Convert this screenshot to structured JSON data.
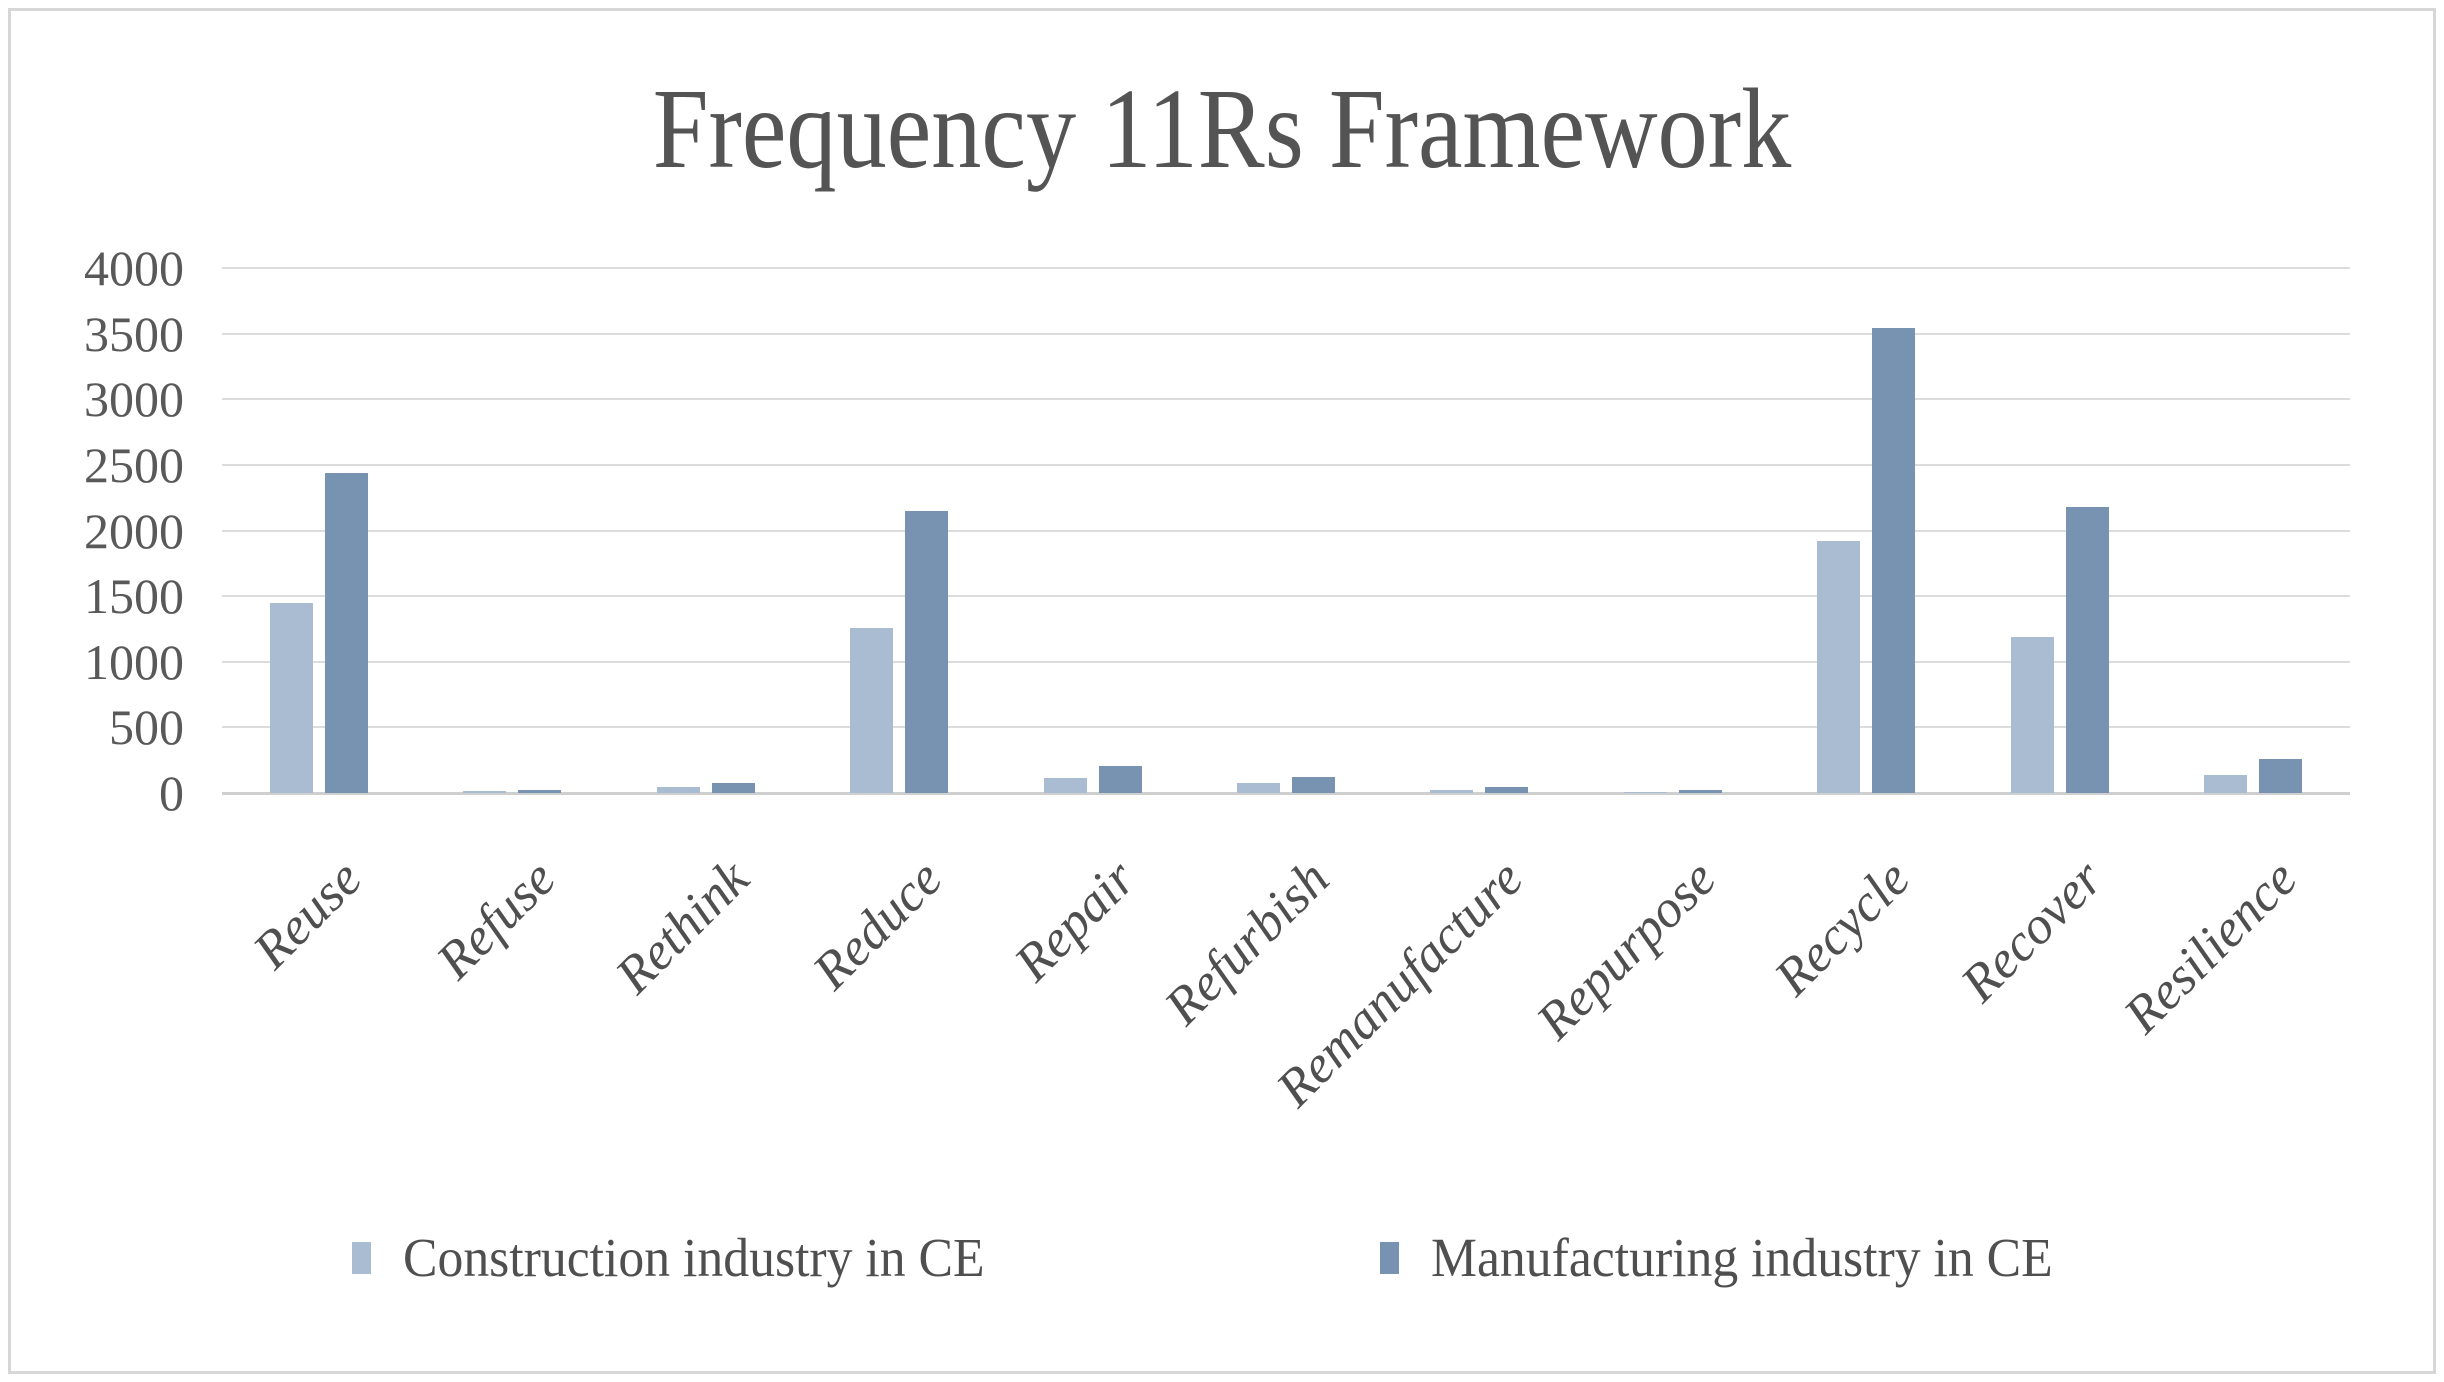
{
  "title": "Frequency 11Rs Framework",
  "colors": {
    "construction_series": "#a9bcd2",
    "manufacturing_series": "#7893b2",
    "gridline": "#dcdcdc",
    "text": "#595959",
    "background": "#ffffff"
  },
  "chart_data": {
    "type": "bar",
    "title": "Frequency 11Rs Framework",
    "categories": [
      "Reuse",
      "Refuse",
      "Rethink",
      "Reduce",
      "Repair",
      "Refurbish",
      "Remanufacture",
      "Repurpose",
      "Recycle",
      "Recover",
      "Resilience"
    ],
    "series": [
      {
        "name": "Construction industry in CE",
        "key": "construction",
        "color": "#a9bcd2",
        "values": [
          1450,
          15,
          45,
          1255,
          115,
          80,
          25,
          10,
          1920,
          1185,
          140
        ]
      },
      {
        "name": "Manufacturing industry in CE",
        "key": "manufacturing",
        "color": "#7893b2",
        "values": [
          2440,
          25,
          75,
          2145,
          205,
          125,
          45,
          20,
          3545,
          2180,
          260
        ]
      }
    ],
    "xlabel": "",
    "ylabel": "",
    "ylim": [
      0,
      4000
    ],
    "ytick_step": 500,
    "ytick_labels": [
      "0",
      "500",
      "1000",
      "1500",
      "2000",
      "2500",
      "3000",
      "3500",
      "4000"
    ],
    "grid": true,
    "legend_position": "bottom",
    "x_label_rotation_deg": 45
  }
}
